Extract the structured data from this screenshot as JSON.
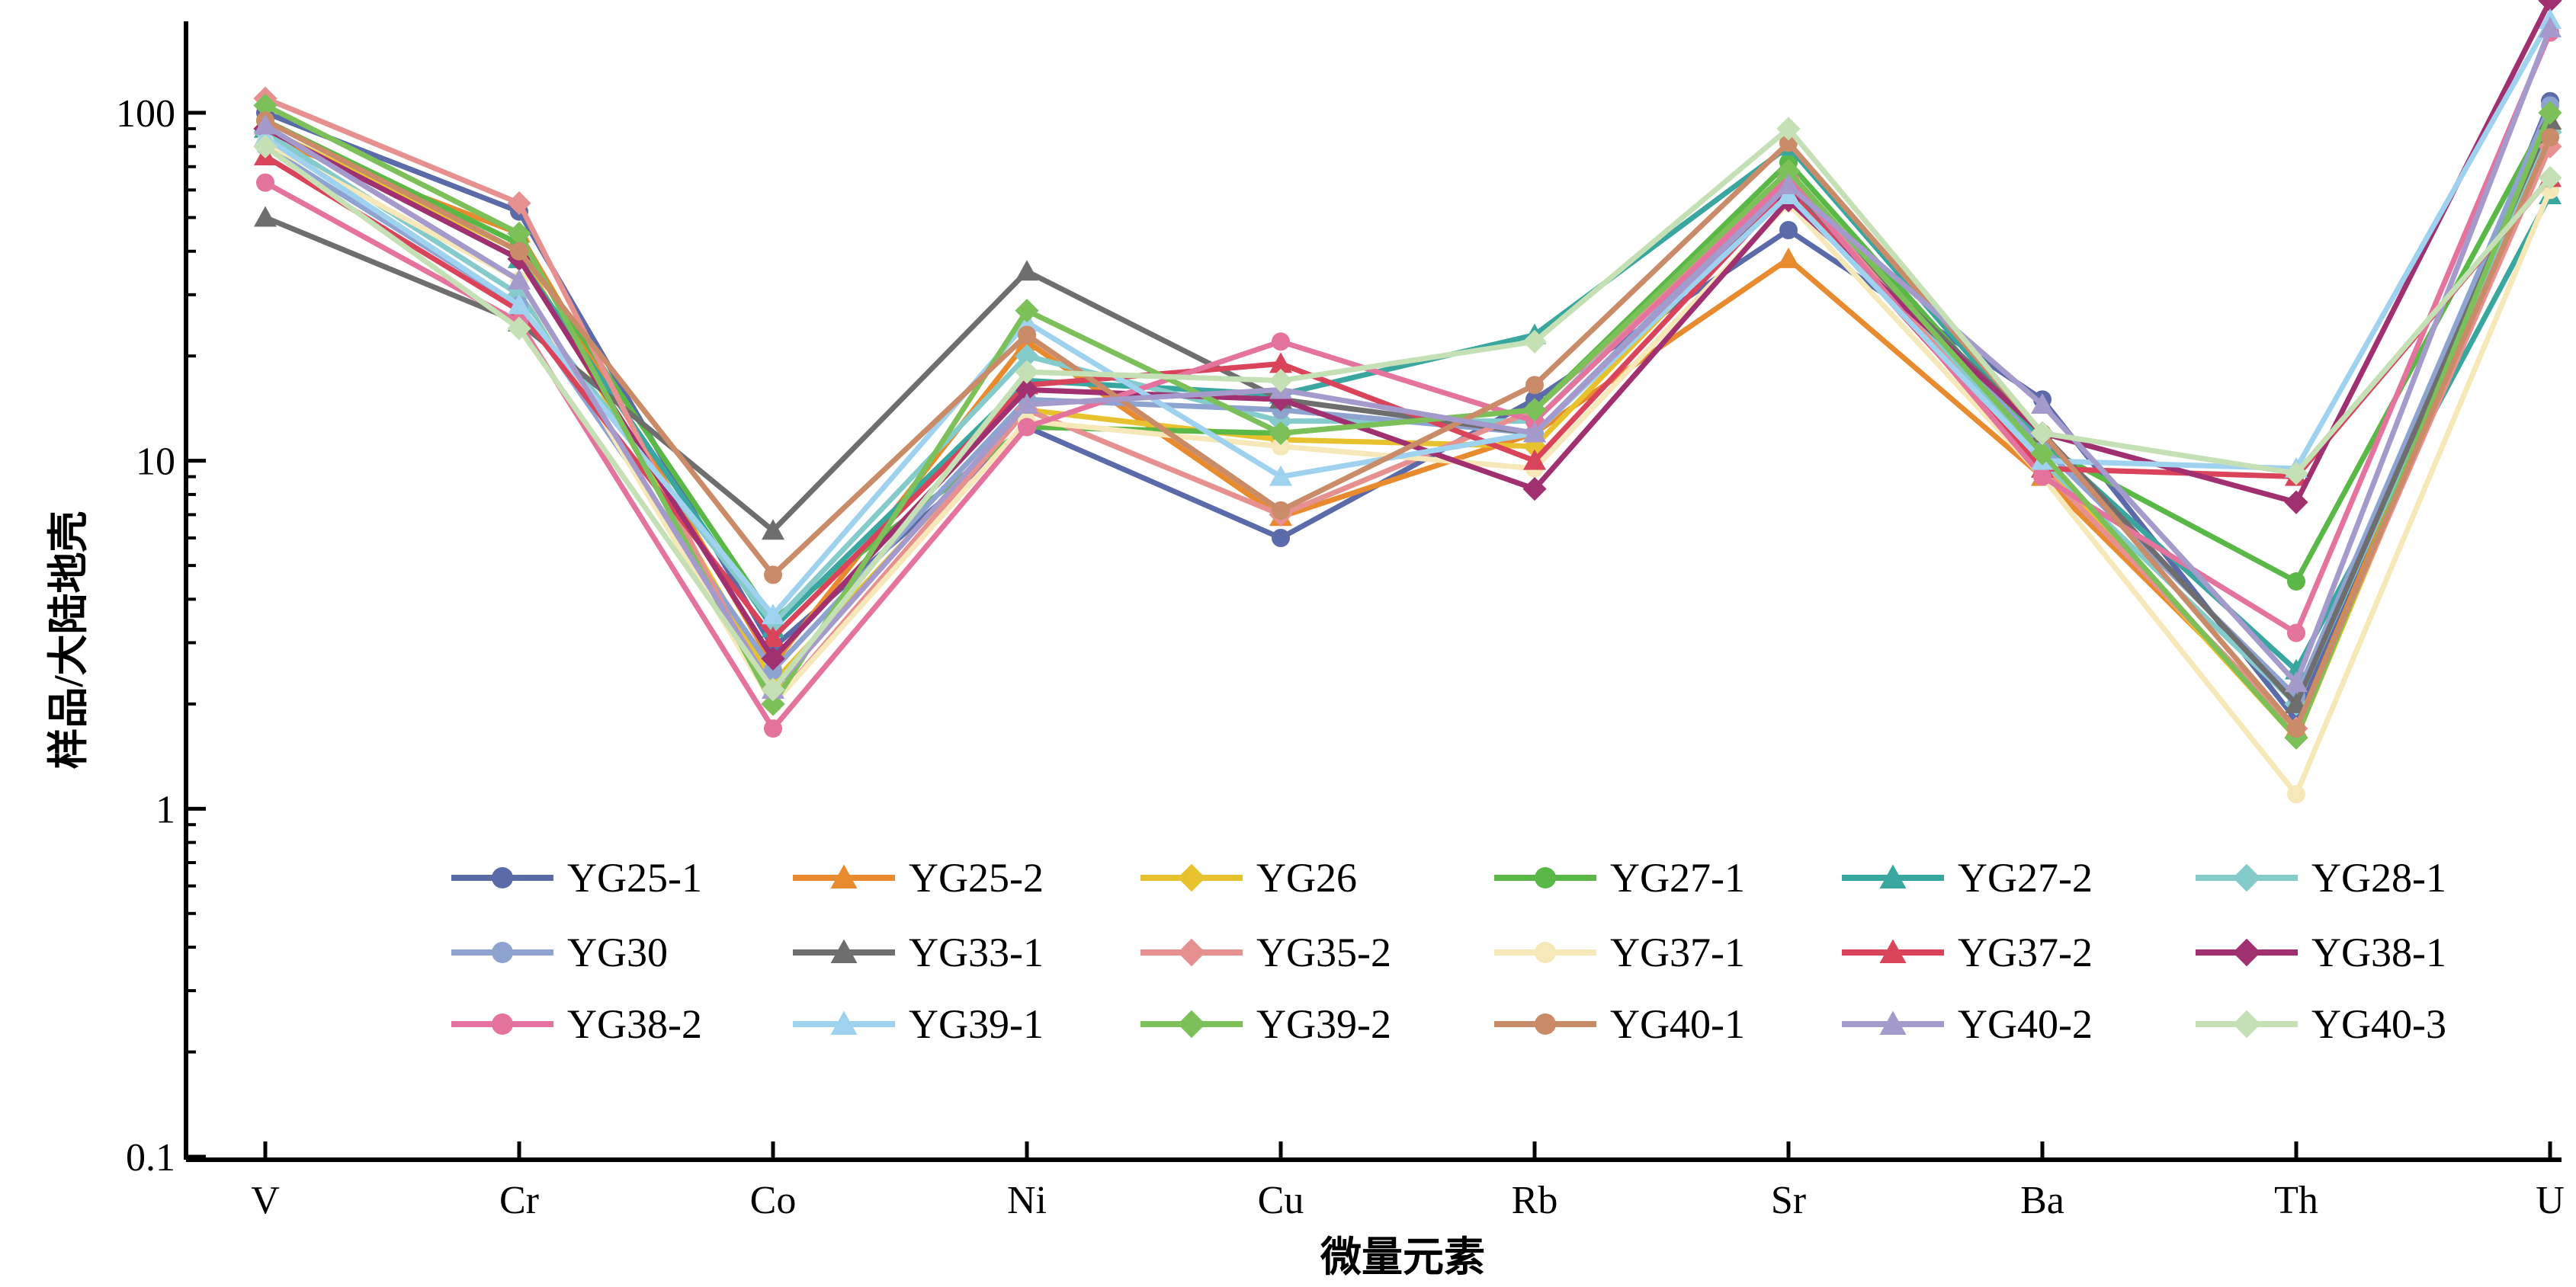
{
  "chart_data": {
    "type": "line",
    "xlabel": "微量元素",
    "ylabel": "样品/大陆地壳",
    "yscale": "log",
    "ylim": [
      0.1,
      200
    ],
    "yticks": [
      0.1,
      1,
      10,
      100
    ],
    "ytick_labels": [
      "0.1",
      "1",
      "10",
      "100"
    ],
    "categories": [
      "V",
      "Cr",
      "Co",
      "Ni",
      "Cu",
      "Rb",
      "Sr",
      "Ba",
      "Th",
      "U"
    ],
    "grid": false,
    "legend_position": "bottom-center",
    "series": [
      {
        "name": "YG25-1",
        "color": "#5b6aa8",
        "marker": "circle",
        "values": [
          100,
          52,
          2.9,
          12.5,
          6.0,
          15,
          46,
          15,
          1.8,
          108
        ]
      },
      {
        "name": "YG25-2",
        "color": "#e88a2e",
        "marker": "triangle",
        "values": [
          85,
          45,
          2.6,
          22,
          6.9,
          12,
          38,
          9,
          1.7,
          95
        ]
      },
      {
        "name": "YG26",
        "color": "#e8c12e",
        "marker": "diamond",
        "values": [
          90,
          40,
          2.3,
          14,
          11.5,
          11,
          62,
          10,
          1.6,
          90
        ]
      },
      {
        "name": "YG27-1",
        "color": "#5ab846",
        "marker": "circle",
        "values": [
          95,
          42,
          3.5,
          12.5,
          12,
          14,
          72,
          11,
          4.5,
          100
        ]
      },
      {
        "name": "YG27-2",
        "color": "#3aa6a0",
        "marker": "triangle",
        "values": [
          90,
          38,
          3.3,
          17,
          15.5,
          23,
          80,
          11.5,
          2.5,
          58
        ]
      },
      {
        "name": "YG28-1",
        "color": "#86cbcb",
        "marker": "diamond",
        "values": [
          88,
          30,
          3.4,
          20,
          13,
          13,
          68,
          10,
          2.0,
          88
        ]
      },
      {
        "name": "YG30",
        "color": "#8fa3d1",
        "marker": "circle",
        "values": [
          80,
          28,
          2.5,
          15,
          14,
          12,
          64,
          11,
          2.1,
          105
        ]
      },
      {
        "name": "YG33-1",
        "color": "#6e6e6e",
        "marker": "triangle",
        "values": [
          50,
          25,
          6.3,
          35,
          15,
          12,
          60,
          12,
          2.0,
          95
        ]
      },
      {
        "name": "YG35-2",
        "color": "#e79090",
        "marker": "diamond",
        "values": [
          110,
          55,
          2.0,
          14,
          7,
          14,
          65,
          9.5,
          1.7,
          80
        ]
      },
      {
        "name": "YG37-1",
        "color": "#f6e8b8",
        "marker": "circle",
        "values": [
          82,
          33,
          2.0,
          13,
          11,
          9.5,
          55,
          9,
          1.1,
          60
        ]
      },
      {
        "name": "YG37-2",
        "color": "#d9445a",
        "marker": "triangle",
        "values": [
          75,
          27,
          3.1,
          16.5,
          19,
          10,
          60,
          9.5,
          9,
          65
        ]
      },
      {
        "name": "YG38-1",
        "color": "#a0306f",
        "marker": "diamond",
        "values": [
          90,
          38,
          2.7,
          16,
          15,
          8.3,
          56,
          12,
          7.6,
          210
        ]
      },
      {
        "name": "YG38-2",
        "color": "#e4739d",
        "marker": "circle",
        "values": [
          63,
          25,
          1.7,
          12.5,
          22,
          13,
          65,
          9,
          3.2,
          170
        ]
      },
      {
        "name": "YG39-1",
        "color": "#9fd2ef",
        "marker": "triangle",
        "values": [
          85,
          28,
          3.6,
          25,
          9,
          12,
          58,
          10,
          9.5,
          185
        ]
      },
      {
        "name": "YG39-2",
        "color": "#7cc05a",
        "marker": "diamond",
        "values": [
          105,
          45,
          2.0,
          27,
          12,
          14,
          68,
          10.5,
          1.6,
          100
        ]
      },
      {
        "name": "YG40-1",
        "color": "#c98b68",
        "marker": "circle",
        "values": [
          95,
          40,
          4.7,
          23,
          7.2,
          16.5,
          82,
          12,
          1.7,
          85
        ]
      },
      {
        "name": "YG40-2",
        "color": "#a49acb",
        "marker": "triangle",
        "values": [
          92,
          33,
          2.2,
          14.5,
          16,
          12,
          62,
          14.5,
          2.3,
          175
        ]
      },
      {
        "name": "YG40-3",
        "color": "#c4e0b4",
        "marker": "diamond",
        "values": [
          80,
          24,
          2.2,
          18,
          17,
          22,
          90,
          12,
          9.2,
          65
        ]
      }
    ]
  }
}
